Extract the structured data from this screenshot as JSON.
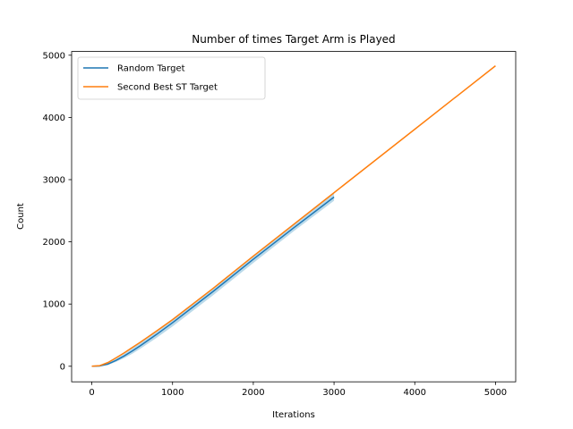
{
  "chart_data": {
    "type": "line",
    "title": "Number of times Target Arm is Played",
    "xlabel": "Iterations",
    "ylabel": "Count",
    "xlim": [
      -250,
      5250
    ],
    "ylim": [
      -250,
      5060
    ],
    "xticks": [
      0,
      1000,
      2000,
      3000,
      4000,
      5000
    ],
    "yticks": [
      0,
      1000,
      2000,
      3000,
      4000,
      5000
    ],
    "grid": false,
    "legend_position": "upper-left",
    "series": [
      {
        "name": "Random Target",
        "color": "#1f77b4",
        "band_color": "#9ecae1",
        "x": [
          0,
          100,
          200,
          300,
          400,
          500,
          600,
          800,
          1000,
          1500,
          2000,
          2500,
          3000
        ],
        "y": [
          0,
          5,
          35,
          95,
          165,
          245,
          330,
          510,
          700,
          1200,
          1720,
          2225,
          2720
        ],
        "band_low": [
          0,
          2,
          20,
          70,
          130,
          200,
          280,
          455,
          640,
          1140,
          1660,
          2170,
          2660
        ],
        "band_high": [
          0,
          8,
          50,
          120,
          200,
          290,
          380,
          560,
          750,
          1250,
          1770,
          2280,
          2780
        ]
      },
      {
        "name": "Second Best ST Target",
        "color": "#ff7f0e",
        "x": [
          0,
          100,
          200,
          300,
          400,
          500,
          600,
          800,
          1000,
          1500,
          2000,
          3000,
          4000,
          5000
        ],
        "y": [
          0,
          10,
          60,
          135,
          215,
          300,
          385,
          565,
          750,
          1250,
          1770,
          2790,
          3810,
          4830
        ]
      }
    ]
  }
}
